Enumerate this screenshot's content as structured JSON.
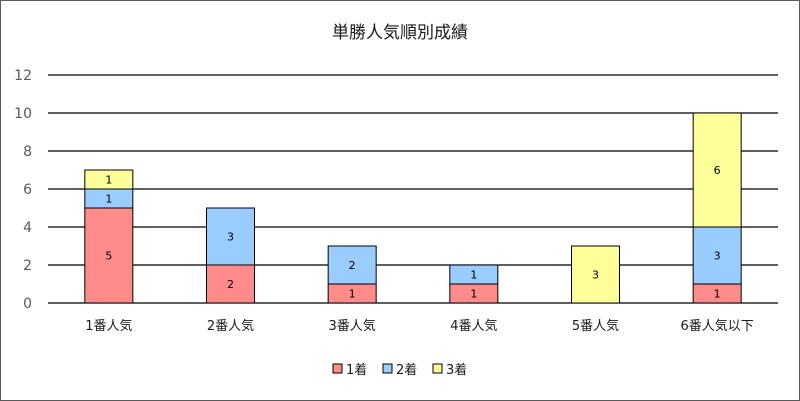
{
  "chart_data": {
    "type": "bar",
    "stacked": true,
    "title": "単勝人気順別成績",
    "xlabel": "",
    "ylabel": "",
    "categories": [
      "1番人気",
      "2番人気",
      "3番人気",
      "4番人気",
      "5番人気",
      "6番人気以下"
    ],
    "series": [
      {
        "name": "1着",
        "color": "#ff8b8b",
        "values": [
          5,
          2,
          1,
          1,
          0,
          1
        ]
      },
      {
        "name": "2着",
        "color": "#99ccff",
        "values": [
          1,
          3,
          2,
          1,
          0,
          3
        ]
      },
      {
        "name": "3着",
        "color": "#ffff99",
        "values": [
          1,
          0,
          0,
          0,
          3,
          6
        ]
      }
    ],
    "ylim": [
      0,
      12
    ],
    "yticks": [
      "0",
      "2",
      "4",
      "6",
      "8",
      "10",
      "12"
    ],
    "grid": true,
    "legend_position": "bottom"
  }
}
